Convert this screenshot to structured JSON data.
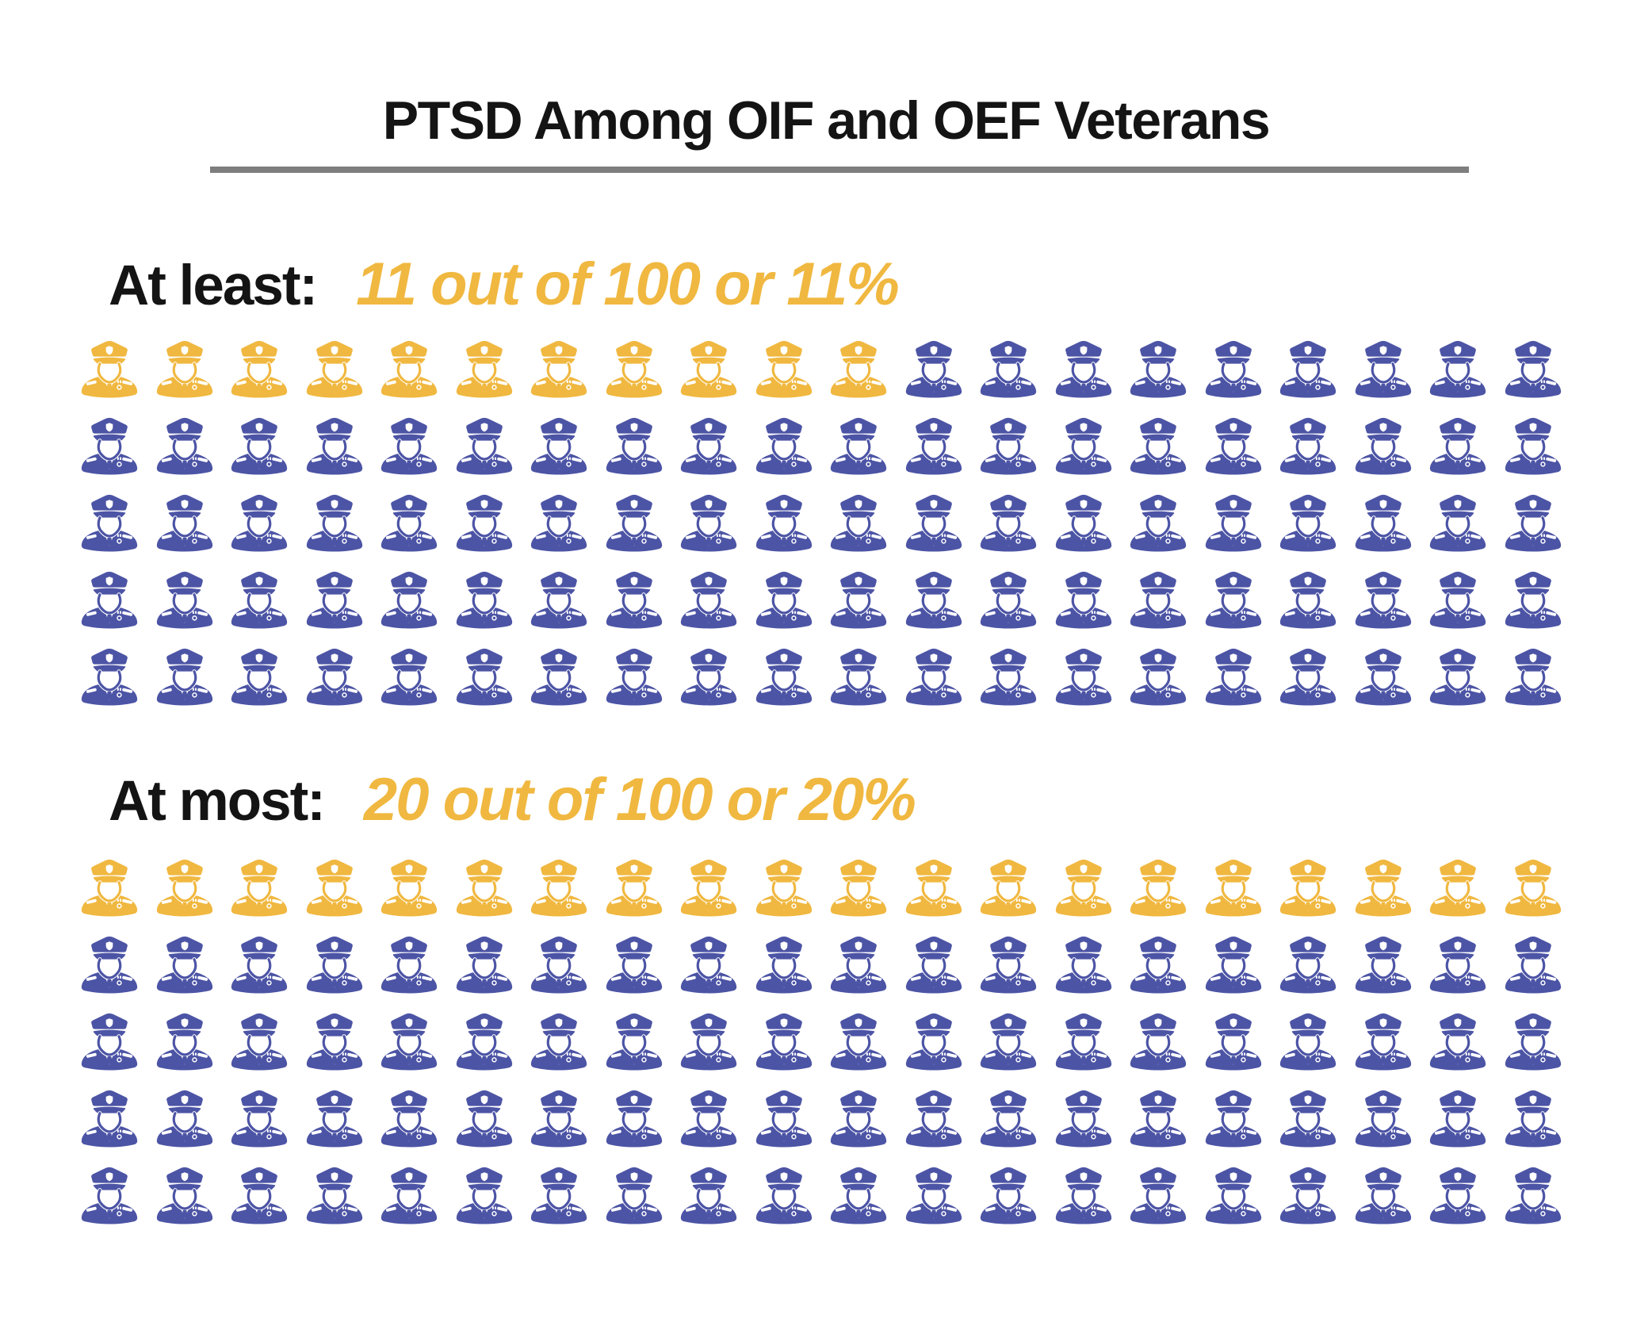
{
  "title": "PTSD Among OIF and OEF Veterans",
  "colors": {
    "highlight": "#F0B840",
    "base": "#4C54A5",
    "divider": "#7E7E7E",
    "text": "#141414"
  },
  "chart_data": [
    {
      "type": "pictograph",
      "icon": "military-officer",
      "label": "At least:",
      "value_text": "11 out of 100 or 11%",
      "highlighted_count": 11,
      "total": 100,
      "icons_per_row": 20,
      "rows": 5,
      "highlight_color": "#F0B840",
      "base_color": "#4C54A5"
    },
    {
      "type": "pictograph",
      "icon": "military-officer",
      "label": "At most:",
      "value_text": "20 out of 100 or 20%",
      "highlighted_count": 20,
      "total": 100,
      "icons_per_row": 20,
      "rows": 5,
      "highlight_color": "#F0B840",
      "base_color": "#4C54A5"
    }
  ]
}
